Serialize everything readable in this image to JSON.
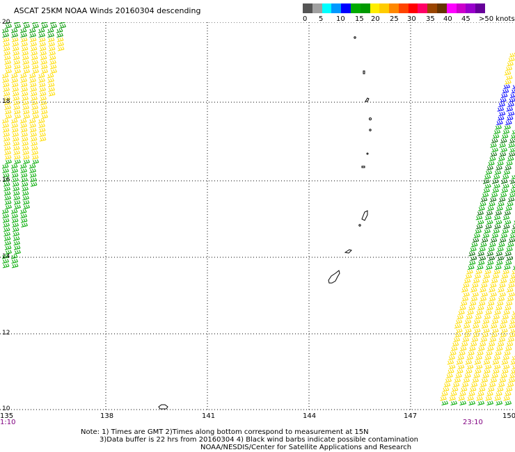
{
  "title": "ASCAT 25KM NOAA Winds 20160304 descending",
  "legend": {
    "labels": [
      "0",
      "5",
      "10",
      "15",
      "20",
      "25",
      "30",
      "35",
      "40",
      "45",
      ">50 knots"
    ],
    "colors": [
      "#555555",
      "#a0a0a0",
      "#00ffff",
      "#0099ff",
      "#0000ff",
      "#00aa00",
      "#009900",
      "#ffee00",
      "#ffcc00",
      "#ff8800",
      "#ff4400",
      "#ff0000",
      "#ff0066",
      "#994400",
      "#663300",
      "#ff00ff",
      "#cc00cc",
      "#9900cc",
      "#660099"
    ]
  },
  "axes": {
    "y_labels": [
      "20",
      "18",
      "16",
      "14",
      "12",
      "10"
    ],
    "x_labels": [
      "135",
      "138",
      "141",
      "144",
      "147",
      "150"
    ]
  },
  "times": {
    "left": "1:10",
    "right": "23:10"
  },
  "notes": {
    "line1": "Note: 1) Times are GMT 2)Times along bottom correspond to measurement at 15N",
    "line2": "3)Data buffer is 22 hrs from 20160304 4) Black wind barbs indicate possible contamination",
    "line3": "NOAA/NESDIS/Center for Satellite Applications and Research"
  }
}
